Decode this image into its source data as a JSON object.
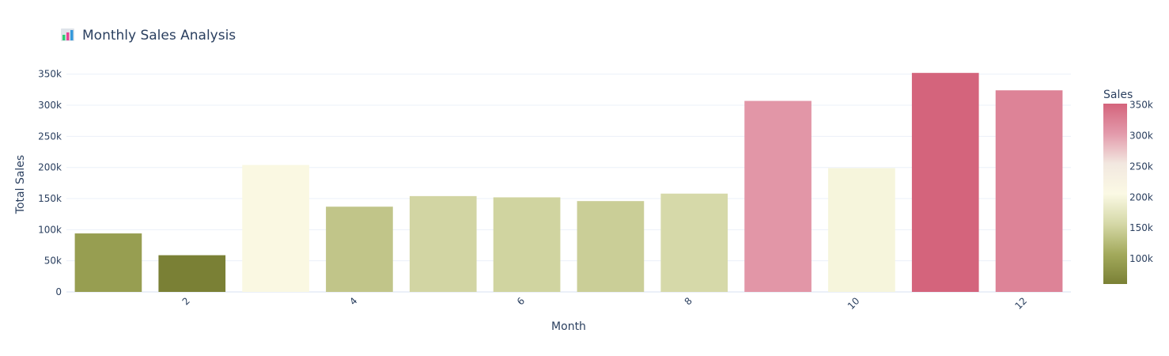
{
  "chart_data": {
    "type": "bar",
    "title": "Monthly Sales Analysis",
    "title_icon": "bar-chart-icon",
    "xlabel": "Month",
    "ylabel": "Total Sales",
    "x": [
      1,
      2,
      3,
      4,
      5,
      6,
      7,
      8,
      9,
      10,
      11,
      12
    ],
    "values": [
      94000,
      59000,
      204000,
      137000,
      154000,
      152000,
      146000,
      158000,
      307000,
      199000,
      352000,
      324000
    ],
    "xticks": [
      2,
      4,
      6,
      8,
      10,
      12
    ],
    "xtick_labels": [
      "2",
      "4",
      "6",
      "8",
      "10",
      "12"
    ],
    "ylim": [
      0,
      370000
    ],
    "yticks": [
      0,
      50000,
      100000,
      150000,
      200000,
      250000,
      300000,
      350000
    ],
    "ytick_labels": [
      "0",
      "50k",
      "100k",
      "150k",
      "200k",
      "250k",
      "300k",
      "350k"
    ],
    "grid": true,
    "colorbar": {
      "title": "Sales",
      "range": [
        59000,
        352000
      ],
      "ticks": [
        100000,
        150000,
        200000,
        250000,
        300000,
        350000
      ],
      "tick_labels": [
        "100k",
        "150k",
        "200k",
        "250k",
        "300k",
        "350k"
      ],
      "colorscale": [
        "#7a8035",
        "#a3aa5c",
        "#d5d8a7",
        "#fbf9e4",
        "#f2e8e0",
        "#e39aab",
        "#d4647c"
      ]
    }
  }
}
